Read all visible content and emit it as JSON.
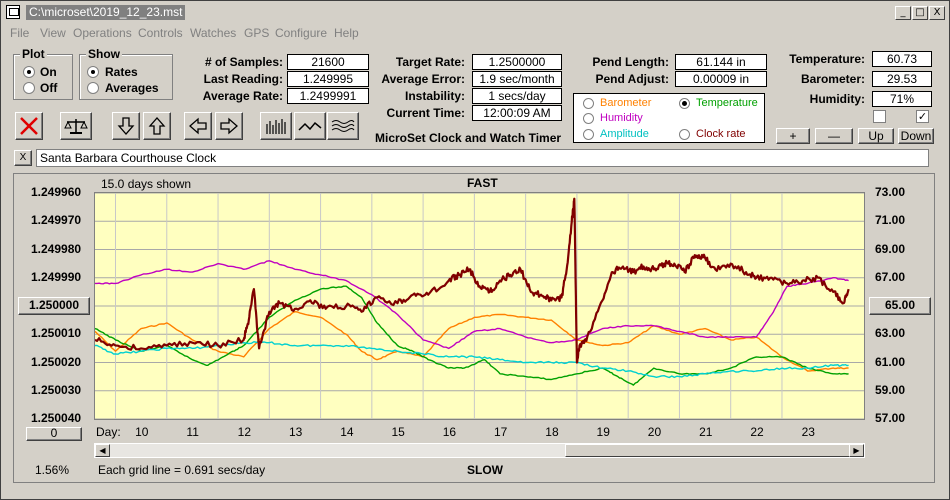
{
  "window": {
    "title": "C:\\microset\\2019_12_23.mst",
    "minimize": "_",
    "maximize": "□",
    "close": "X"
  },
  "menu": [
    "File",
    "View",
    "Operations",
    "Controls",
    "Watches",
    "GPS",
    "Configure",
    "Help"
  ],
  "plot_group": {
    "title": "Plot",
    "on": "On",
    "off": "Off",
    "selected": "On"
  },
  "show_group": {
    "title": "Show",
    "rates": "Rates",
    "averages": "Averages",
    "selected": "Rates"
  },
  "stats": {
    "samples_label": "# of Samples:",
    "samples": "21600",
    "last_label": "Last Reading:",
    "last": "1.249995",
    "avg_label": "Average Rate:",
    "avg": "1.2499991"
  },
  "rates": {
    "target_label": "Target Rate:",
    "target": "1.2500000",
    "error_label": "Average Error:",
    "error": "1.9 sec/month",
    "instab_label": "Instability:",
    "instab": "1 secs/day",
    "time_label": "Current Time:",
    "time": "12:00:09 AM"
  },
  "pend": {
    "length_label": "Pend Length:",
    "length": "61.144 in",
    "adjust_label": "Pend Adjust:",
    "adjust": "0.00009 in"
  },
  "env": {
    "temp_label": "Temperature:",
    "temp": "60.73",
    "baro_label": "Barometer:",
    "baro": "29.53",
    "hum_label": "Humidity:",
    "hum": "71%"
  },
  "app_title": "MicroSet Clock and Watch Timer",
  "sensors": [
    {
      "label": "Barometer",
      "color": "#ff8000",
      "selected": false
    },
    {
      "label": "Temperature",
      "color": "#00a000",
      "selected": true
    },
    {
      "label": "Humidity",
      "color": "#c000c0",
      "selected": false
    },
    {
      "label": "Amplitude",
      "color": "#00c0c0",
      "selected": false
    },
    {
      "label": "Clock rate",
      "color": "#800000",
      "selected": false
    }
  ],
  "adjust_buttons": {
    "plus": "+",
    "minus": "—",
    "up": "Up",
    "down": "Down"
  },
  "checkboxes": [
    {
      "checked": false
    },
    {
      "checked": true
    }
  ],
  "clock_name": "Santa Barbara Courthouse Clock",
  "clear_button": "X",
  "chart_data": {
    "type": "line",
    "title": "FAST",
    "bottom_title": "SLOW",
    "days_shown": "15.0 days shown",
    "grid_note": "Each grid line = 0.691 secs/day",
    "zoom": "1.56%",
    "center_left": "1.250000",
    "center_right": "65.00",
    "left_button": "0",
    "xlabel": "Day:",
    "x_ticks": [
      "10",
      "11",
      "12",
      "13",
      "14",
      "15",
      "16",
      "17",
      "18",
      "19",
      "20",
      "21",
      "22",
      "23"
    ],
    "xlim": [
      9.1,
      24.1
    ],
    "y_left_ticks": [
      "1.249960",
      "1.249970",
      "1.249980",
      "1.249990",
      "1.250000",
      "1.250010",
      "1.250020",
      "1.250030",
      "1.250040"
    ],
    "ylim_left": [
      1.24996,
      1.25004
    ],
    "y_right_ticks": [
      "73.00",
      "71.00",
      "69.00",
      "67.00",
      "65.00",
      "63.00",
      "61.00",
      "59.00",
      "57.00"
    ],
    "ylim_right": [
      73,
      57
    ],
    "grid": true,
    "series": [
      {
        "name": "Barometer",
        "color": "#ff8000",
        "width": 1.4,
        "x": [
          9.1,
          9.5,
          10.0,
          10.5,
          11.0,
          11.5,
          12.0,
          12.5,
          13.0,
          13.5,
          14.0,
          14.3,
          14.6,
          15.0,
          15.5,
          16.0,
          16.5,
          17.0,
          17.5,
          18.0,
          18.5,
          19.0,
          19.5,
          20.0,
          20.5,
          21.0,
          21.5,
          22.0,
          22.5,
          23.0,
          23.5,
          23.8
        ],
        "y": [
          1.250009,
          1.250016,
          1.250008,
          1.250006,
          1.250012,
          1.250016,
          1.250018,
          1.250008,
          1.250002,
          1.250004,
          1.25001,
          1.250016,
          1.250019,
          1.250016,
          1.250018,
          1.250008,
          1.250004,
          1.250003,
          1.250004,
          1.250005,
          1.250012,
          1.250014,
          1.250013,
          1.250007,
          1.25001,
          1.250008,
          1.250012,
          1.250011,
          1.250018,
          1.250023,
          1.250022,
          1.250022
        ]
      },
      {
        "name": "Temperature",
        "color": "#00a000",
        "width": 1.4,
        "x": [
          9.1,
          9.5,
          10.0,
          10.5,
          11.0,
          11.3,
          11.7,
          12.0,
          12.5,
          13.0,
          13.5,
          14.0,
          14.3,
          14.6,
          15.0,
          15.3,
          15.6,
          16.0,
          16.3,
          16.7,
          17.0,
          17.5,
          18.0,
          18.5,
          19.0,
          19.3,
          19.6,
          20.0,
          20.5,
          21.0,
          21.5,
          22.0,
          22.5,
          23.0,
          23.5,
          23.8
        ],
        "y": [
          1.250008,
          1.250012,
          1.250016,
          1.250014,
          1.250019,
          1.250021,
          1.250017,
          1.250014,
          1.250004,
          1.249998,
          1.249994,
          1.249993,
          1.249997,
          1.250006,
          1.250014,
          1.250016,
          1.250019,
          1.250022,
          1.250022,
          1.250019,
          1.250024,
          1.250025,
          1.250026,
          1.250024,
          1.250022,
          1.250025,
          1.250028,
          1.250022,
          1.250024,
          1.250024,
          1.250022,
          1.250018,
          1.250018,
          1.250022,
          1.250024,
          1.250024
        ]
      },
      {
        "name": "Humidity",
        "color": "#c000c0",
        "width": 1.4,
        "x": [
          9.1,
          9.5,
          10.0,
          10.5,
          11.0,
          11.5,
          12.0,
          12.5,
          13.0,
          13.5,
          14.0,
          14.5,
          15.0,
          15.5,
          16.0,
          16.5,
          17.0,
          17.5,
          18.0,
          18.5,
          19.0,
          19.5,
          20.0,
          20.5,
          21.0,
          21.5,
          22.0,
          22.3,
          22.6,
          23.0,
          23.5,
          23.8
        ],
        "y": [
          1.249992,
          1.249992,
          1.249989,
          1.249987,
          1.249988,
          1.249985,
          1.249987,
          1.249984,
          1.249987,
          1.249989,
          1.249991,
          1.249996,
          1.250003,
          1.250012,
          1.250015,
          1.250009,
          1.250008,
          1.250011,
          1.250013,
          1.250012,
          1.250008,
          1.250007,
          1.250007,
          1.250009,
          1.250011,
          1.250011,
          1.250011,
          1.250003,
          1.249993,
          1.249992,
          1.24999,
          1.249991
        ]
      },
      {
        "name": "Amplitude",
        "color": "#00d0d0",
        "width": 1.4,
        "x": [
          9.1,
          9.5,
          10.0,
          10.5,
          11.0,
          11.5,
          12.0,
          12.5,
          13.0,
          13.5,
          14.0,
          14.5,
          15.0,
          15.5,
          16.0,
          16.5,
          17.0,
          17.5,
          18.0,
          18.5,
          19.0,
          19.5,
          20.0,
          20.5,
          21.0,
          21.5,
          22.0,
          22.5,
          23.0,
          23.5,
          23.8
        ],
        "y": [
          1.250014,
          1.250017,
          1.250016,
          1.250015,
          1.250015,
          1.250014,
          1.250013,
          1.250013,
          1.250014,
          1.250014,
          1.250014,
          1.250015,
          1.250016,
          1.250017,
          1.250018,
          1.250018,
          1.250019,
          1.25002,
          1.25002,
          1.25002,
          1.250022,
          1.250023,
          1.250025,
          1.250025,
          1.250024,
          1.250023,
          1.250023,
          1.250022,
          1.250022,
          1.250021,
          1.250021
        ]
      },
      {
        "name": "Clock rate",
        "color": "#800000",
        "width": 2.2,
        "x": [
          9.1,
          9.5,
          10.0,
          10.5,
          11.0,
          11.5,
          12.0,
          12.1,
          12.2,
          12.3,
          12.5,
          12.7,
          13.0,
          13.3,
          13.6,
          14.0,
          14.3,
          14.6,
          15.0,
          15.3,
          15.6,
          16.0,
          16.2,
          16.4,
          16.6,
          16.8,
          17.0,
          17.2,
          17.4,
          17.6,
          17.8,
          18.0,
          18.2,
          18.3,
          18.4,
          18.45,
          18.5,
          18.55,
          18.7,
          19.0,
          19.2,
          19.4,
          19.6,
          19.8,
          20.0,
          20.2,
          20.4,
          20.6,
          20.8,
          21.0,
          21.2,
          21.5,
          21.8,
          22.0,
          22.3,
          22.6,
          22.9,
          23.2,
          23.5,
          23.7,
          23.8
        ],
        "y": [
          1.250012,
          1.250014,
          1.250015,
          1.250014,
          1.250013,
          1.250014,
          1.250012,
          1.250005,
          1.249994,
          1.250015,
          1.250002,
          1.249999,
          1.250001,
          1.249998,
          1.250001,
          1.25,
          1.250002,
          1.249997,
          1.249999,
          1.249996,
          1.249996,
          1.249991,
          1.249989,
          1.249987,
          1.249993,
          1.249995,
          1.249991,
          1.249989,
          1.249987,
          1.249995,
          1.249996,
          1.249998,
          1.249997,
          1.249987,
          1.24997,
          1.249962,
          1.25002,
          1.250014,
          1.250011,
          1.249998,
          1.249988,
          1.249986,
          1.249988,
          1.249986,
          1.249987,
          1.249985,
          1.249985,
          1.249988,
          1.249982,
          1.249983,
          1.249987,
          1.249985,
          1.249988,
          1.24999,
          1.24999,
          1.249992,
          1.249991,
          1.24999,
          1.249995,
          1.249999,
          1.249994
        ]
      }
    ]
  }
}
